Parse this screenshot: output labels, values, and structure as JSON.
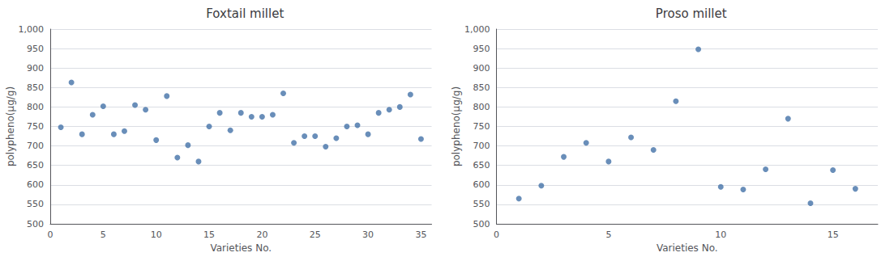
{
  "chart_data": [
    {
      "type": "scatter",
      "title": "Foxtail millet",
      "x": [
        1,
        2,
        3,
        4,
        5,
        6,
        7,
        8,
        9,
        10,
        11,
        12,
        13,
        14,
        15,
        16,
        17,
        18,
        19,
        20,
        21,
        22,
        23,
        24,
        25,
        26,
        27,
        28,
        29,
        30,
        31,
        32,
        33,
        34,
        35
      ],
      "values": [
        748,
        863,
        730,
        780,
        802,
        730,
        738,
        805,
        793,
        715,
        828,
        670,
        702,
        660,
        750,
        785,
        740,
        785,
        775,
        775,
        780,
        835,
        708,
        725,
        725,
        698,
        720,
        750,
        753,
        730,
        785,
        793,
        800,
        832,
        718
      ],
      "color": "#4472a8",
      "xlabel": "Varieties No.",
      "ylabel": "polypheno(μg/g)",
      "xlim": [
        0,
        36
      ],
      "xticks": [
        0,
        5,
        10,
        15,
        20,
        25,
        30,
        35
      ],
      "ylim": [
        500,
        1000
      ],
      "yticks": [
        500,
        550,
        600,
        650,
        700,
        750,
        800,
        850,
        900,
        950,
        {
          "value": 1000,
          "label": "1,000"
        }
      ],
      "grid": "y"
    },
    {
      "type": "scatter",
      "title": "Proso millet",
      "x": [
        1,
        2,
        3,
        4,
        5,
        6,
        7,
        8,
        9,
        10,
        11,
        12,
        13,
        14,
        15,
        16
      ],
      "values": [
        565,
        598,
        672,
        708,
        660,
        722,
        690,
        815,
        948,
        595,
        588,
        640,
        770,
        553,
        638,
        590
      ],
      "color": "#4472a8",
      "xlabel": "Varieties No.",
      "ylabel": "polypheno(μg/g)",
      "xlim": [
        0,
        17
      ],
      "xticks": [
        0,
        5,
        10,
        15
      ],
      "ylim": [
        500,
        1000
      ],
      "yticks": [
        500,
        550,
        600,
        650,
        700,
        750,
        800,
        850,
        900,
        950,
        {
          "value": 1000,
          "label": "1,000"
        }
      ],
      "grid": "y"
    }
  ]
}
